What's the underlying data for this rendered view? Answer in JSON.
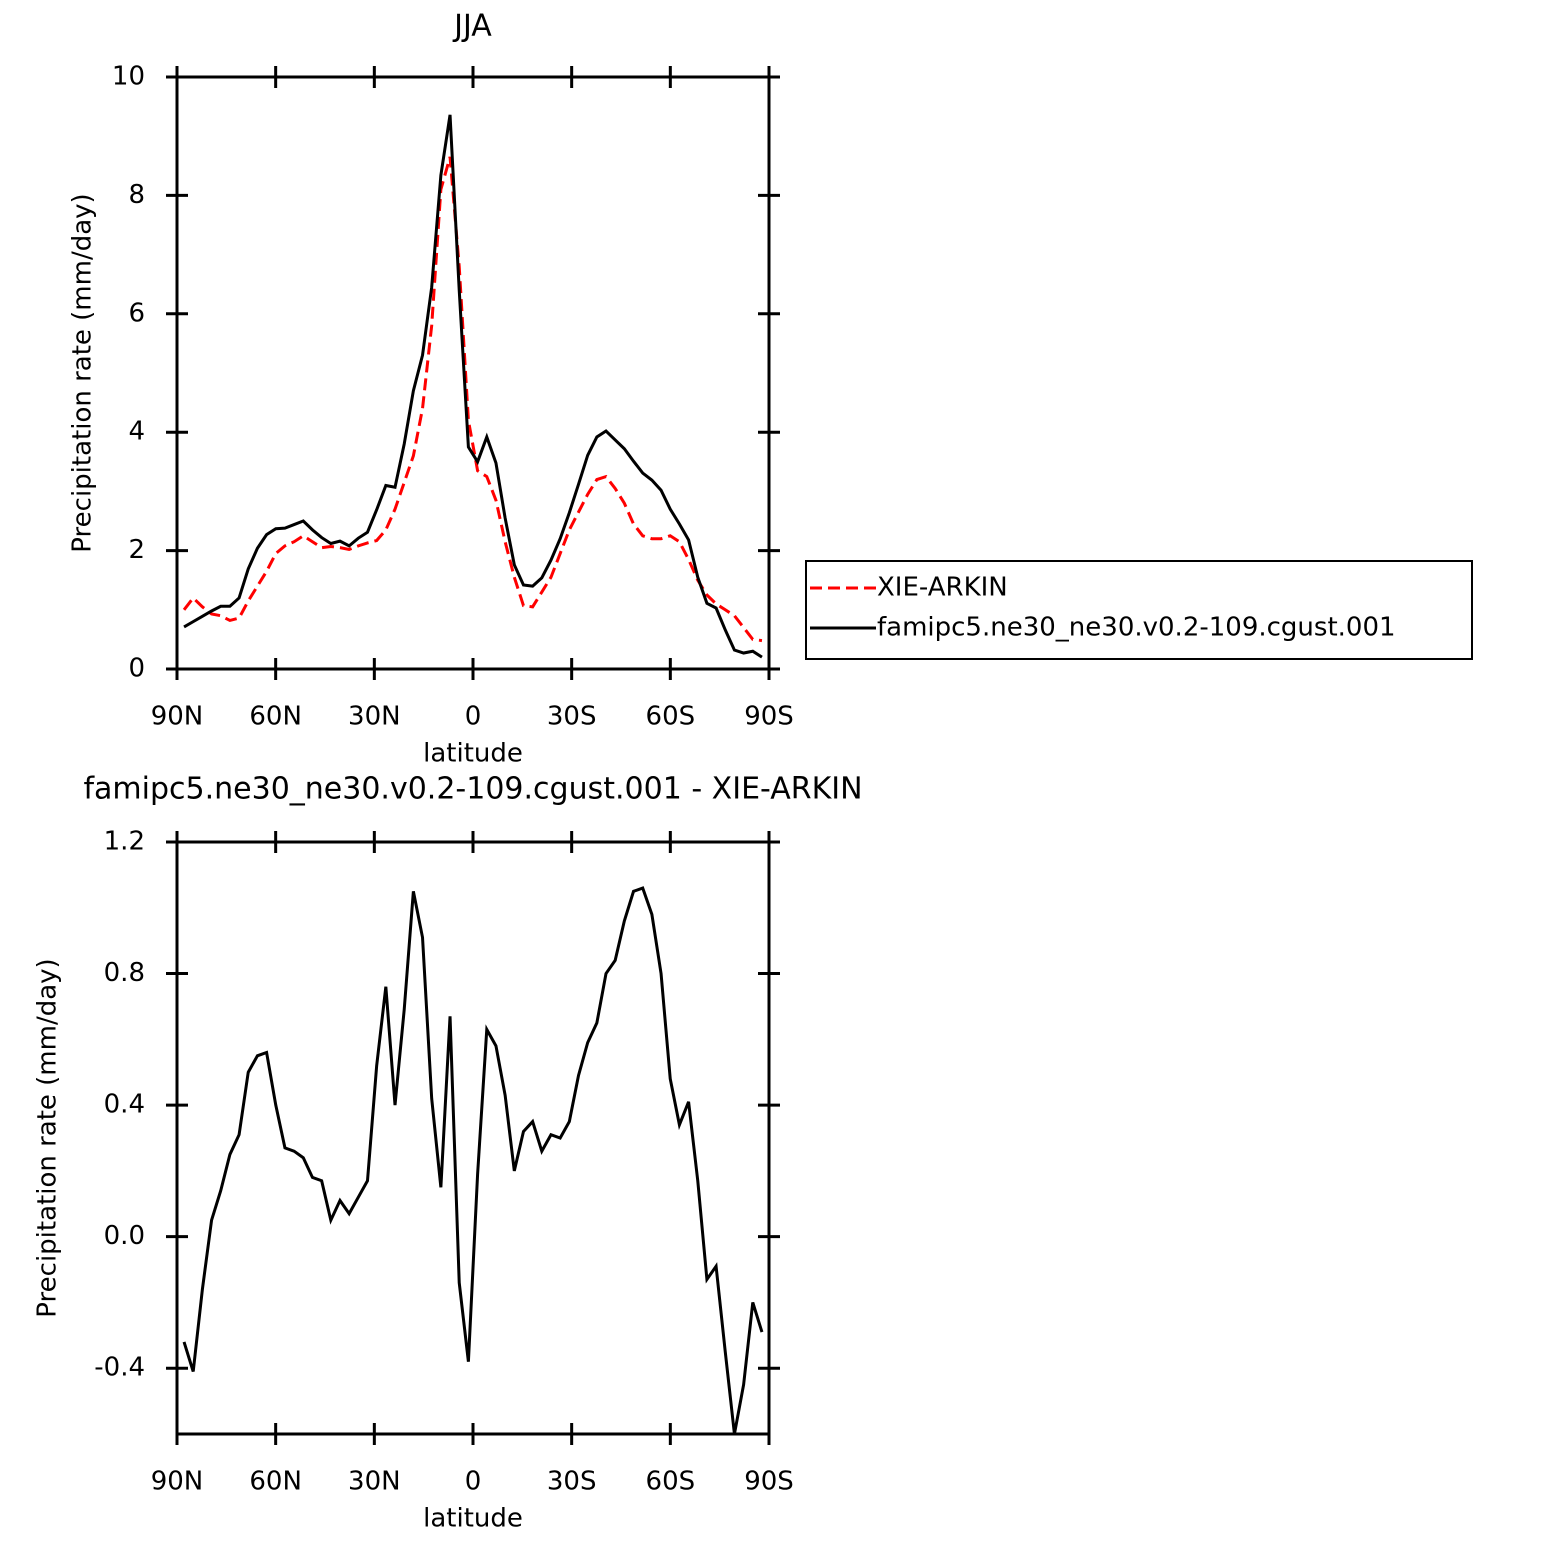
{
  "chart_data": [
    {
      "type": "line",
      "title": "JJA",
      "xlabel": "latitude",
      "ylabel": "Precipitation rate (mm/day)",
      "xlim": [
        90,
        -90
      ],
      "ylim": [
        0,
        10
      ],
      "xticks": [
        {
          "value": 90,
          "label": "90N"
        },
        {
          "value": 60,
          "label": "60N"
        },
        {
          "value": 30,
          "label": "30N"
        },
        0,
        {
          "value": -30,
          "label": "30S"
        },
        {
          "value": -60,
          "label": "60S"
        },
        {
          "value": -90,
          "label": "90S"
        }
      ],
      "yticks": [
        0,
        2,
        4,
        6,
        8,
        10
      ],
      "legend": "right",
      "x": [
        87.86,
        85.07,
        82.28,
        79.49,
        76.7,
        73.91,
        71.12,
        68.34,
        65.55,
        62.76,
        59.97,
        57.18,
        54.39,
        51.6,
        48.81,
        46.02,
        43.23,
        40.44,
        37.66,
        34.87,
        32.08,
        29.29,
        26.5,
        23.71,
        20.92,
        18.13,
        15.35,
        12.56,
        9.77,
        6.98,
        4.19,
        1.4,
        -1.4,
        -4.19,
        -6.98,
        -9.77,
        -12.56,
        -15.35,
        -18.13,
        -20.92,
        -23.71,
        -26.5,
        -29.29,
        -32.08,
        -34.87,
        -37.66,
        -40.44,
        -43.23,
        -46.02,
        -48.81,
        -51.6,
        -54.39,
        -57.18,
        -59.97,
        -62.76,
        -65.55,
        -68.34,
        -71.12,
        -73.91,
        -76.7,
        -79.49,
        -82.28,
        -85.07,
        -87.86
      ],
      "series": [
        {
          "name": "XIE-ARKIN",
          "color": "#ff0000",
          "style": "dashed",
          "values": [
            1.0,
            1.2,
            1.05,
            0.93,
            0.9,
            0.82,
            0.86,
            1.15,
            1.4,
            1.65,
            1.95,
            2.08,
            2.15,
            2.25,
            2.15,
            2.05,
            2.07,
            2.05,
            2.02,
            2.08,
            2.13,
            2.17,
            2.35,
            2.7,
            3.15,
            3.6,
            4.4,
            5.8,
            8.1,
            8.65,
            6.8,
            4.2,
            3.35,
            3.25,
            2.85,
            2.15,
            1.55,
            1.07,
            1.05,
            1.3,
            1.55,
            1.95,
            2.35,
            2.65,
            2.95,
            3.2,
            3.25,
            3.05,
            2.8,
            2.45,
            2.25,
            2.2,
            2.2,
            2.25,
            2.15,
            1.85,
            1.5,
            1.25,
            1.1,
            1.0,
            0.9,
            0.7,
            0.5,
            0.48
          ]
        },
        {
          "name": "famipc5.ne30_ne30.v0.2-109.cgust.001",
          "color": "#000000",
          "style": "solid",
          "values": [
            0.71,
            0.8,
            0.89,
            0.98,
            1.06,
            1.06,
            1.2,
            1.69,
            2.04,
            2.27,
            2.37,
            2.38,
            2.44,
            2.5,
            2.35,
            2.22,
            2.12,
            2.16,
            2.08,
            2.21,
            2.31,
            2.69,
            3.1,
            3.07,
            3.8,
            4.7,
            5.3,
            6.45,
            8.34,
            9.36,
            6.4,
            3.75,
            3.5,
            3.92,
            3.48,
            2.55,
            1.76,
            1.42,
            1.4,
            1.54,
            1.84,
            2.2,
            2.64,
            3.12,
            3.61,
            3.92,
            4.02,
            3.87,
            3.72,
            3.51,
            3.31,
            3.19,
            3.02,
            2.7,
            2.45,
            2.18,
            1.55,
            1.11,
            1.03,
            0.66,
            0.32,
            0.27,
            0.3,
            0.2
          ]
        }
      ]
    },
    {
      "type": "line",
      "title": "famipc5.ne30_ne30.v0.2-109.cgust.001  -  XIE-ARKIN",
      "xlabel": "latitude",
      "ylabel": "Precipitation rate (mm/day)",
      "xlim": [
        90,
        -90
      ],
      "ylim": [
        -0.6,
        1.2
      ],
      "xticks": [
        {
          "value": 90,
          "label": "90N"
        },
        {
          "value": 60,
          "label": "60N"
        },
        {
          "value": 30,
          "label": "30N"
        },
        0,
        {
          "value": -30,
          "label": "30S"
        },
        {
          "value": -60,
          "label": "60S"
        },
        {
          "value": -90,
          "label": "90S"
        }
      ],
      "yticks": [
        -0.4,
        {
          "value": 0,
          "label": "0.0"
        },
        0.4,
        0.8,
        1.2
      ],
      "x": [
        87.86,
        85.07,
        82.28,
        79.49,
        76.7,
        73.91,
        71.12,
        68.34,
        65.55,
        62.76,
        59.97,
        57.18,
        54.39,
        51.6,
        48.81,
        46.02,
        43.23,
        40.44,
        37.66,
        34.87,
        32.08,
        29.29,
        26.5,
        23.71,
        20.92,
        18.13,
        15.35,
        12.56,
        9.77,
        6.98,
        4.19,
        1.4,
        -1.4,
        -4.19,
        -6.98,
        -9.77,
        -12.56,
        -15.35,
        -18.13,
        -20.92,
        -23.71,
        -26.5,
        -29.29,
        -32.08,
        -34.87,
        -37.66,
        -40.44,
        -43.23,
        -46.02,
        -48.81,
        -51.6,
        -54.39,
        -57.18,
        -59.97,
        -62.76,
        -65.55,
        -68.34,
        -71.12,
        -73.91,
        -76.7,
        -79.49,
        -82.28,
        -85.07,
        -87.86
      ],
      "series": [
        {
          "color": "#000000",
          "style": "solid",
          "values": [
            -0.32,
            -0.41,
            -0.16,
            0.05,
            0.14,
            0.25,
            0.31,
            0.5,
            0.55,
            0.56,
            0.4,
            0.27,
            0.26,
            0.24,
            0.18,
            0.17,
            0.05,
            0.11,
            0.07,
            0.12,
            0.17,
            0.52,
            0.76,
            0.4,
            0.69,
            1.05,
            0.91,
            0.42,
            0.15,
            0.67,
            -0.14,
            -0.38,
            0.19,
            0.63,
            0.58,
            0.43,
            0.2,
            0.32,
            0.35,
            0.26,
            0.31,
            0.3,
            0.35,
            0.49,
            0.59,
            0.65,
            0.8,
            0.84,
            0.96,
            1.05,
            1.06,
            0.98,
            0.8,
            0.48,
            0.34,
            0.41,
            0.17,
            -0.13,
            -0.09,
            -0.35,
            -0.6,
            -0.45,
            -0.2,
            -0.29
          ]
        }
      ]
    }
  ]
}
